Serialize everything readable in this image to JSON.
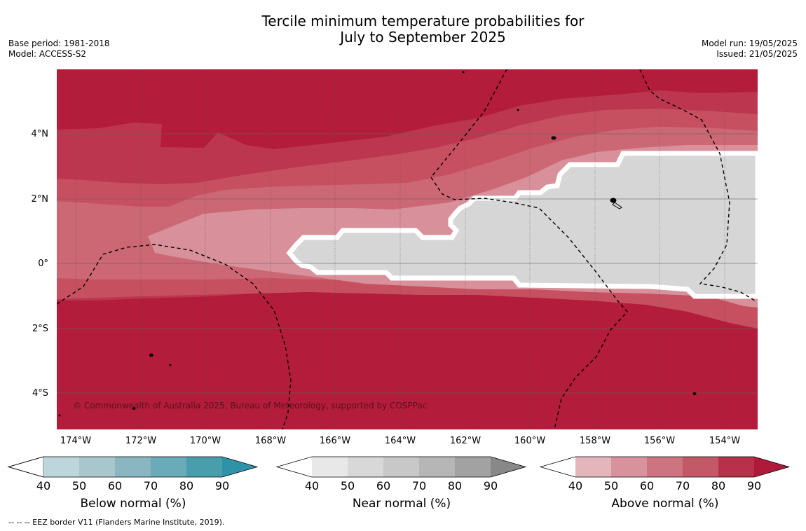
{
  "title_line1": "Tercile minimum temperature probabilities for",
  "title_line2": "July to September 2025",
  "meta_left": [
    "Base period: 1981-2018",
    "Model: ACCESS-S2"
  ],
  "meta_right": [
    "Model run: 19/05/2025",
    "Issued: 21/05/2025"
  ],
  "map": {
    "lat_labels": [
      "4°N",
      "2°N",
      "0°",
      "2°S",
      "4°S"
    ],
    "lon_labels": [
      "174°W",
      "172°W",
      "170°W",
      "168°W",
      "166°W",
      "164°W",
      "162°W",
      "160°W",
      "158°W",
      "156°W",
      "154°W"
    ],
    "copyright": "© Commonwealth of Australia 2025, Bureau of Meteorology, supported by COSPPac",
    "colors": {
      "above_90": "#b31c3a",
      "above_80": "#bd3650",
      "above_70": "#c65060",
      "above_60": "#cc6774",
      "above_50": "#d8909a",
      "near": "#d6d6d6"
    }
  },
  "colorbars": [
    {
      "title": "Below normal (%)",
      "ticks": [
        "40",
        "50",
        "60",
        "70",
        "80",
        "90"
      ],
      "colors": [
        "#bdd6dc",
        "#a8c7cd",
        "#8ab6c2",
        "#6aabb9",
        "#4a9dad",
        "#2e93a8"
      ]
    },
    {
      "title": "Near normal (%)",
      "ticks": [
        "40",
        "50",
        "60",
        "70",
        "80",
        "90"
      ],
      "colors": [
        "#e8e8e8",
        "#d8d8d8",
        "#c8c8c8",
        "#b6b6b6",
        "#a2a2a2",
        "#888888"
      ]
    },
    {
      "title": "Above normal (%)",
      "ticks": [
        "40",
        "50",
        "60",
        "70",
        "80",
        "90"
      ],
      "colors": [
        "#e4b6bc",
        "#d8929b",
        "#cc7480",
        "#c35866",
        "#b83049",
        "#b01a3a"
      ]
    }
  ],
  "footer": "--  --  -- EEZ border V11 (Flanders Marine Institute, 2019)."
}
